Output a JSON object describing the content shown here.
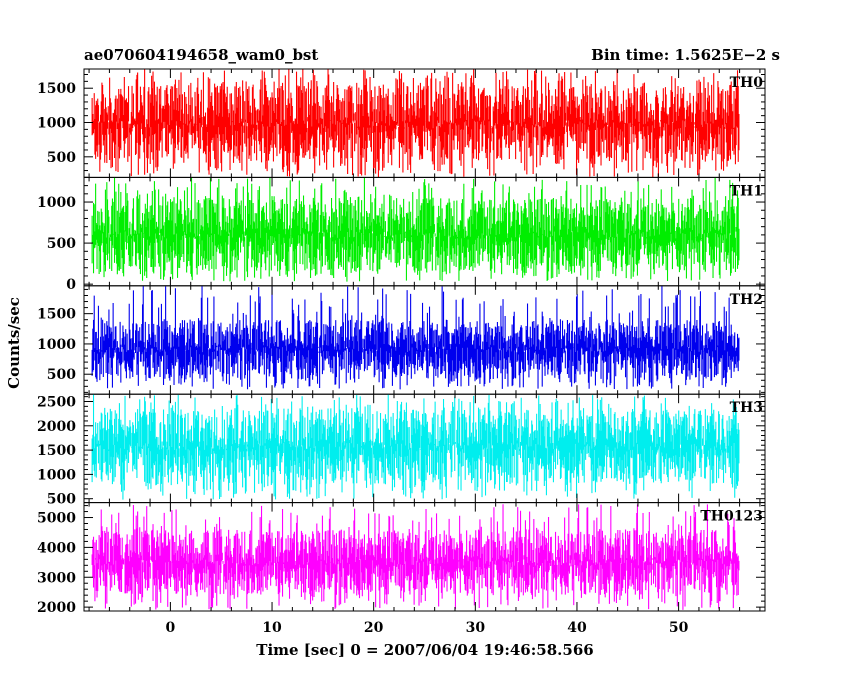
{
  "header": {
    "title": "ae070604194658_wam0_bst",
    "bin_time": "Bin time: 1.5625E−2 s"
  },
  "chart_data": {
    "type": "line",
    "xlabel": "Time [sec] 0 = 2007/06/04 19:46:58.566",
    "ylabel": "Counts/sec",
    "xlim": [
      -8.5,
      58.5
    ],
    "x_ticks": [
      0,
      10,
      20,
      30,
      40,
      50
    ],
    "x_tick_labels": [
      "0",
      "10",
      "20",
      "30",
      "40",
      "50"
    ],
    "data_x_range": [
      -7.7,
      56.0
    ],
    "panels": [
      {
        "name": "TH0",
        "color": "#ff0000",
        "ylim": [
          200,
          1780
        ],
        "y_ticks": [
          500,
          1000,
          1500
        ],
        "y_tick_labels": [
          "500",
          "1000",
          "1500"
        ],
        "typical_range": [
          400,
          1550
        ],
        "min": 200,
        "max": 1780,
        "mean": 870
      },
      {
        "name": "TH1",
        "color": "#00ee00",
        "ylim": [
          -20,
          1300
        ],
        "y_ticks": [
          0,
          500,
          1000
        ],
        "y_tick_labels": [
          "0",
          "500",
          "1000"
        ],
        "typical_range": [
          150,
          1050
        ],
        "min": 30,
        "max": 1300,
        "mean": 600
      },
      {
        "name": "TH2",
        "color": "#0000ee",
        "ylim": [
          170,
          1960
        ],
        "y_ticks": [
          500,
          1000,
          1500
        ],
        "y_tick_labels": [
          "500",
          "1000",
          "1500"
        ],
        "typical_range": [
          420,
          1400
        ],
        "min": 250,
        "max": 1960,
        "mean": 820
      },
      {
        "name": "TH3",
        "color": "#00eeee",
        "ylim": [
          420,
          2650
        ],
        "y_ticks": [
          500,
          1000,
          1500,
          2000,
          2500
        ],
        "y_tick_labels": [
          "500",
          "1000",
          "1500",
          "2000",
          "2500"
        ],
        "typical_range": [
          800,
          2350
        ],
        "min": 480,
        "max": 2650,
        "mean": 1550
      },
      {
        "name": "TH0123",
        "color": "#ff00ff",
        "ylim": [
          1870,
          5500
        ],
        "y_ticks": [
          2000,
          3000,
          4000,
          5000
        ],
        "y_tick_labels": [
          "2000",
          "3000",
          "4000",
          "5000"
        ],
        "typical_range": [
          2400,
          4600
        ],
        "min": 1900,
        "max": 5450,
        "mean": 3450
      }
    ]
  }
}
